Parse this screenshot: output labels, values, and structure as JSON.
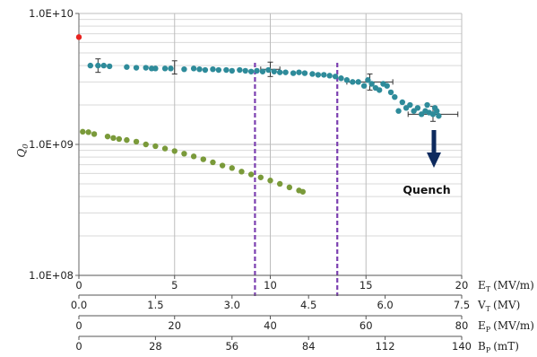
{
  "chart_data": {
    "type": "scatter",
    "title": "",
    "ylabel": "Q0",
    "yscale": "log",
    "ylim": [
      100000000,
      10000000000
    ],
    "y_ticks": [
      "1.0E+08",
      "1.0E+09",
      "1.0E+10"
    ],
    "grid": true,
    "x_axes": [
      {
        "label_main": "E",
        "label_sub": "T",
        "unit": "(MV/m)",
        "range": [
          0,
          20
        ],
        "ticks": [
          "0",
          "5",
          "10",
          "15",
          "20"
        ]
      },
      {
        "label_main": "V",
        "label_sub": "T",
        "unit": "(MV)",
        "range": [
          0,
          7.5
        ],
        "ticks": [
          "0.0",
          "1.5",
          "3.0",
          "4.5",
          "6.0",
          "7.5"
        ]
      },
      {
        "label_main": "E",
        "label_sub": "P",
        "unit": "(MV/m)",
        "range": [
          0,
          80
        ],
        "ticks": [
          "0",
          "20",
          "40",
          "60",
          "80"
        ]
      },
      {
        "label_main": "B",
        "label_sub": "P",
        "unit": "(mT)",
        "range": [
          0,
          140
        ],
        "ticks": [
          "0",
          "28",
          "56",
          "84",
          "112",
          "140"
        ]
      }
    ],
    "series": [
      {
        "color": "#2e8b9a",
        "points": [
          [
            0.6,
            4000000000.0
          ],
          [
            1.0,
            4000000000.0
          ],
          [
            1.3,
            4000000000.0
          ],
          [
            1.6,
            3950000000.0
          ],
          [
            2.5,
            3900000000.0
          ],
          [
            3.0,
            3850000000.0
          ],
          [
            3.5,
            3850000000.0
          ],
          [
            3.8,
            3800000000.0
          ],
          [
            4.0,
            3800000000.0
          ],
          [
            4.5,
            3800000000.0
          ],
          [
            4.8,
            3800000000.0
          ],
          [
            5.5,
            3750000000.0
          ],
          [
            6.0,
            3800000000.0
          ],
          [
            6.3,
            3750000000.0
          ],
          [
            6.6,
            3700000000.0
          ],
          [
            7.0,
            3750000000.0
          ],
          [
            7.3,
            3700000000.0
          ],
          [
            7.7,
            3700000000.0
          ],
          [
            8.0,
            3650000000.0
          ],
          [
            8.4,
            3700000000.0
          ],
          [
            8.7,
            3650000000.0
          ],
          [
            9.0,
            3600000000.0
          ],
          [
            9.3,
            3650000000.0
          ],
          [
            9.6,
            3600000000.0
          ],
          [
            9.9,
            3700000000.0
          ],
          [
            10.2,
            3600000000.0
          ],
          [
            10.5,
            3550000000.0
          ],
          [
            10.8,
            3550000000.0
          ],
          [
            11.2,
            3500000000.0
          ],
          [
            11.5,
            3550000000.0
          ],
          [
            11.8,
            3500000000.0
          ],
          [
            12.2,
            3450000000.0
          ],
          [
            12.5,
            3400000000.0
          ],
          [
            12.8,
            3400000000.0
          ],
          [
            13.1,
            3350000000.0
          ],
          [
            13.4,
            3300000000.0
          ],
          [
            13.7,
            3200000000.0
          ],
          [
            14.0,
            3100000000.0
          ],
          [
            14.3,
            3000000000.0
          ],
          [
            14.6,
            3000000000.0
          ],
          [
            14.9,
            2800000000.0
          ],
          [
            15.1,
            3100000000.0
          ],
          [
            15.3,
            2900000000.0
          ],
          [
            15.5,
            2700000000.0
          ],
          [
            15.7,
            2600000000.0
          ],
          [
            15.9,
            2900000000.0
          ],
          [
            16.1,
            2800000000.0
          ],
          [
            16.3,
            2500000000.0
          ],
          [
            16.5,
            2300000000.0
          ],
          [
            16.7,
            1800000000.0
          ],
          [
            16.9,
            2100000000.0
          ],
          [
            17.1,
            1900000000.0
          ],
          [
            17.3,
            2000000000.0
          ],
          [
            17.5,
            1800000000.0
          ],
          [
            17.7,
            1900000000.0
          ],
          [
            17.9,
            1700000000.0
          ],
          [
            18.1,
            1800000000.0
          ],
          [
            18.3,
            1750000000.0
          ],
          [
            18.5,
            1700000000.0
          ],
          [
            18.7,
            1800000000.0
          ],
          [
            18.2,
            2000000000.0
          ],
          [
            18.8,
            1650000000.0
          ],
          [
            18.6,
            1900000000.0
          ]
        ],
        "error_bars": [
          {
            "x": 1.0,
            "y": 4000000000.0,
            "ylow": 3550000000.0,
            "yhigh": 4500000000.0
          },
          {
            "x": 10.0,
            "y": 3750000000.0,
            "ylow": 3300000000.0,
            "yhigh": 4250000000.0
          },
          {
            "x": 10.0,
            "y": 3750000000.0,
            "xlow": 9.5,
            "xhigh": 10.5
          },
          {
            "x": 15.2,
            "y": 3000000000.0,
            "ylow": 2600000000.0,
            "yhigh": 3450000000.0
          },
          {
            "x": 15.2,
            "y": 3000000000.0,
            "xlow": 14.0,
            "xhigh": 16.4
          },
          {
            "x": 5.0,
            "y": 3850000000.0,
            "ylow": 3450000000.0,
            "yhigh": 4350000000.0
          },
          {
            "x": 18.5,
            "y": 1700000000.0,
            "ylow": 1500000000.0,
            "yhigh": 1950000000.0
          },
          {
            "x": 18.5,
            "y": 1700000000.0,
            "xlow": 17.2,
            "xhigh": 19.8
          }
        ]
      },
      {
        "color": "#7a9a3a",
        "points": [
          [
            0.2,
            1250000000.0
          ],
          [
            0.5,
            1240000000.0
          ],
          [
            0.8,
            1200000000.0
          ],
          [
            1.5,
            1150000000.0
          ],
          [
            1.8,
            1120000000.0
          ],
          [
            2.1,
            1100000000.0
          ],
          [
            2.5,
            1080000000.0
          ],
          [
            3.0,
            1050000000.0
          ],
          [
            3.5,
            1000000000.0
          ],
          [
            4.0,
            970000000.0
          ],
          [
            4.5,
            930000000.0
          ],
          [
            5.0,
            890000000.0
          ],
          [
            5.5,
            850000000.0
          ],
          [
            6.0,
            810000000.0
          ],
          [
            6.5,
            770000000.0
          ],
          [
            7.0,
            730000000.0
          ],
          [
            7.5,
            690000000.0
          ],
          [
            8.0,
            660000000.0
          ],
          [
            8.5,
            620000000.0
          ],
          [
            9.0,
            590000000.0
          ],
          [
            9.5,
            560000000.0
          ],
          [
            10.0,
            530000000.0
          ],
          [
            10.5,
            500000000.0
          ],
          [
            11.0,
            470000000.0
          ],
          [
            11.5,
            445000000.0
          ],
          [
            11.7,
            435000000.0
          ]
        ]
      },
      {
        "color": "#e8231f",
        "points": [
          [
            0.0,
            6600000000.0
          ]
        ]
      }
    ],
    "vlines": [
      {
        "x": 9.2,
        "color": "#7b3fb0"
      },
      {
        "x": 13.5,
        "color": "#7b3fb0"
      }
    ],
    "annotations": [
      {
        "text": "Quench",
        "arrow_color": "#0d2a5e"
      }
    ]
  }
}
